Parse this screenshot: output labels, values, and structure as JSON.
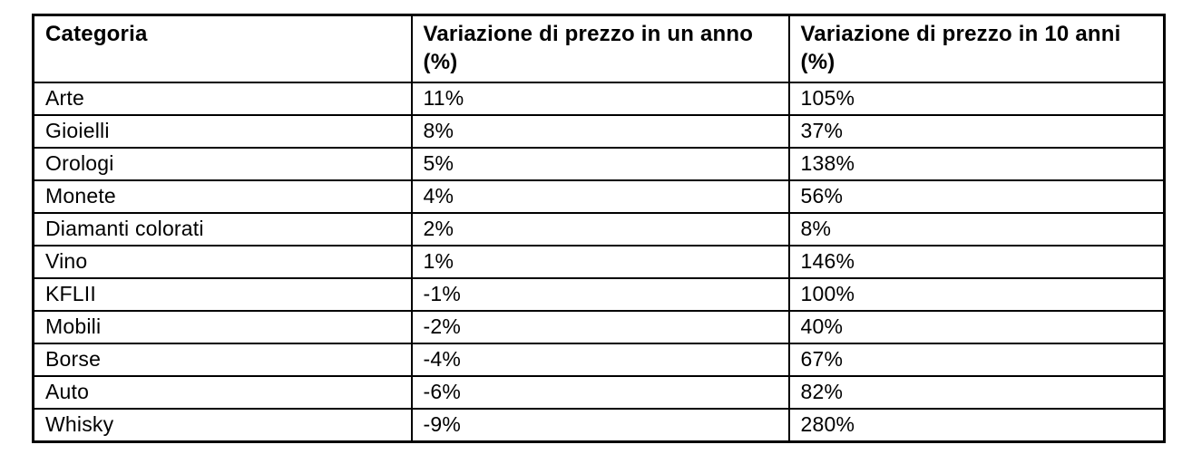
{
  "chart_data": {
    "type": "table",
    "columns": [
      "Categoria",
      "Variazione di prezzo in un anno (%)",
      "Variazione di prezzo in 10 anni (%)"
    ],
    "rows": [
      [
        "Arte",
        "11%",
        "105%"
      ],
      [
        "Gioielli",
        "8%",
        "37%"
      ],
      [
        "Orologi",
        "5%",
        "138%"
      ],
      [
        "Monete",
        "4%",
        "56%"
      ],
      [
        "Diamanti colorati",
        "2%",
        "8%"
      ],
      [
        "Vino",
        "1%",
        "146%"
      ],
      [
        "KFLII",
        "-1%",
        "100%"
      ],
      [
        "Mobili",
        "-2%",
        "40%"
      ],
      [
        "Borse",
        "-4%",
        "67%"
      ],
      [
        "Auto",
        "-6%",
        "82%"
      ],
      [
        "Whisky",
        "-9%",
        "280%"
      ]
    ]
  },
  "colors": {
    "background": "#ffffff",
    "text": "#000000",
    "border": "#000000"
  }
}
